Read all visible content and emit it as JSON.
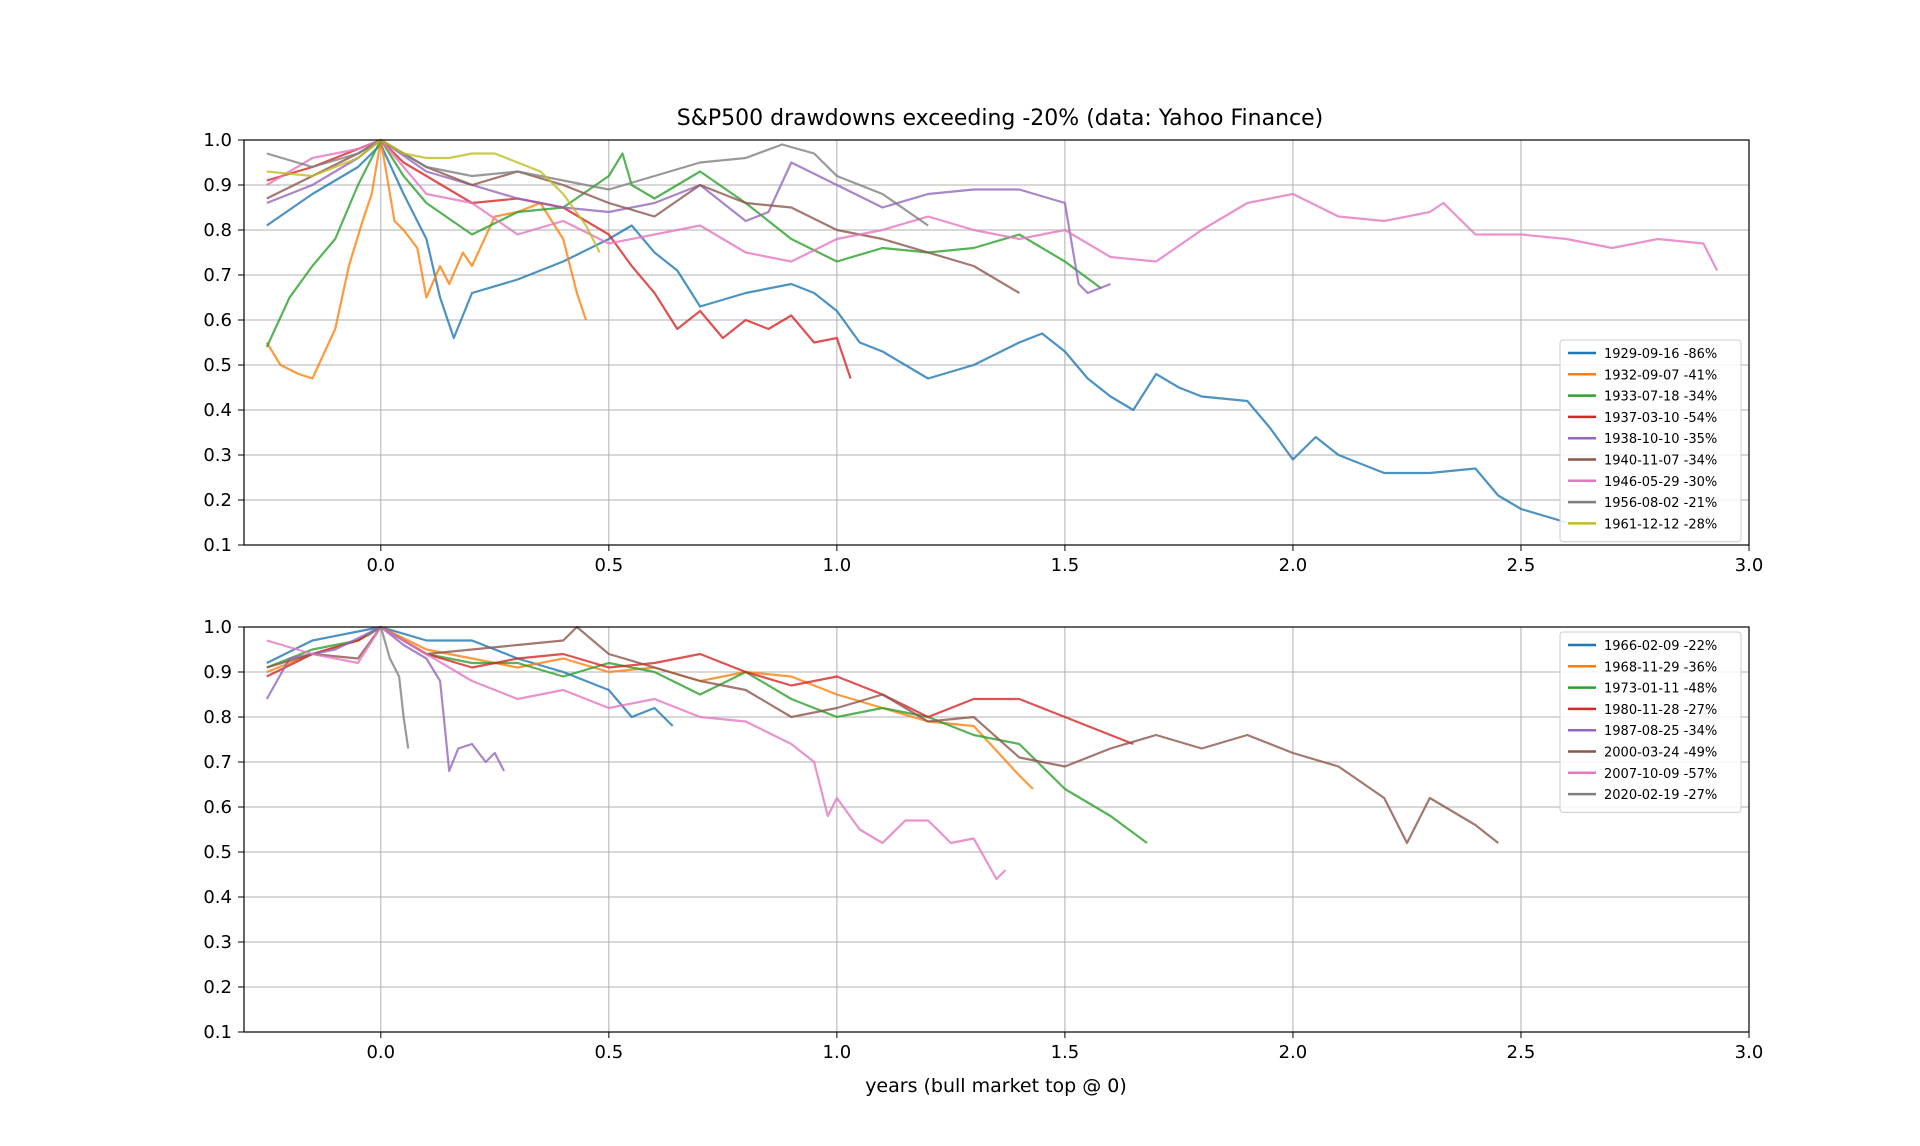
{
  "chart_data": [
    {
      "type": "line",
      "title": "S&P500 drawdowns exceeding -20% (data: Yahoo Finance)",
      "xlabel": "",
      "ylabel": "",
      "xlim": [
        -0.3,
        3.0
      ],
      "ylim": [
        0.1,
        1.0
      ],
      "xticks": [
        "0.0",
        "0.5",
        "1.0",
        "1.5",
        "2.0",
        "2.5",
        "3.0"
      ],
      "yticks": [
        "0.1",
        "0.2",
        "0.3",
        "0.4",
        "0.5",
        "0.6",
        "0.7",
        "0.8",
        "0.9",
        "1.0"
      ],
      "grid": true,
      "legend_position": "lower-right",
      "series": [
        {
          "name": "1929-09-16 -86%",
          "color": "#1f77b4",
          "x": [
            -0.25,
            -0.15,
            -0.05,
            0.0,
            0.05,
            0.1,
            0.13,
            0.16,
            0.2,
            0.3,
            0.4,
            0.5,
            0.55,
            0.6,
            0.65,
            0.7,
            0.8,
            0.9,
            0.95,
            1.0,
            1.05,
            1.1,
            1.2,
            1.3,
            1.4,
            1.45,
            1.5,
            1.55,
            1.6,
            1.65,
            1.7,
            1.75,
            1.8,
            1.9,
            1.95,
            2.0,
            2.05,
            2.1,
            2.2,
            2.3,
            2.4,
            2.45,
            2.5,
            2.6
          ],
          "y": [
            0.81,
            0.88,
            0.94,
            0.99,
            0.88,
            0.78,
            0.65,
            0.56,
            0.66,
            0.69,
            0.73,
            0.78,
            0.81,
            0.75,
            0.71,
            0.63,
            0.66,
            0.68,
            0.66,
            0.62,
            0.55,
            0.53,
            0.47,
            0.5,
            0.55,
            0.57,
            0.53,
            0.47,
            0.43,
            0.4,
            0.48,
            0.45,
            0.43,
            0.42,
            0.36,
            0.29,
            0.34,
            0.3,
            0.26,
            0.26,
            0.27,
            0.21,
            0.18,
            0.15
          ]
        },
        {
          "name": "1932-09-07 -41%",
          "color": "#ff7f0e",
          "x": [
            -0.25,
            -0.22,
            -0.18,
            -0.15,
            -0.1,
            -0.07,
            -0.04,
            -0.02,
            0.0,
            0.03,
            0.05,
            0.08,
            0.1,
            0.13,
            0.15,
            0.18,
            0.2,
            0.25,
            0.3,
            0.35,
            0.4,
            0.43,
            0.45
          ],
          "y": [
            0.55,
            0.5,
            0.48,
            0.47,
            0.58,
            0.72,
            0.82,
            0.88,
            1.0,
            0.82,
            0.8,
            0.76,
            0.65,
            0.72,
            0.68,
            0.75,
            0.72,
            0.83,
            0.84,
            0.86,
            0.78,
            0.66,
            0.6
          ]
        },
        {
          "name": "1933-07-18 -34%",
          "color": "#2ca02c",
          "x": [
            -0.25,
            -0.2,
            -0.15,
            -0.1,
            -0.05,
            0.0,
            0.05,
            0.1,
            0.2,
            0.3,
            0.4,
            0.5,
            0.53,
            0.55,
            0.6,
            0.7,
            0.8,
            0.9,
            1.0,
            1.1,
            1.2,
            1.3,
            1.4,
            1.5,
            1.58
          ],
          "y": [
            0.54,
            0.65,
            0.72,
            0.78,
            0.9,
            1.0,
            0.92,
            0.86,
            0.79,
            0.84,
            0.85,
            0.92,
            0.97,
            0.9,
            0.87,
            0.93,
            0.86,
            0.78,
            0.73,
            0.76,
            0.75,
            0.76,
            0.79,
            0.73,
            0.67
          ]
        },
        {
          "name": "1937-03-10 -54%",
          "color": "#d62728",
          "x": [
            -0.25,
            -0.15,
            -0.05,
            0.0,
            0.05,
            0.1,
            0.2,
            0.3,
            0.4,
            0.45,
            0.5,
            0.55,
            0.6,
            0.65,
            0.7,
            0.75,
            0.8,
            0.85,
            0.9,
            0.95,
            1.0,
            1.03
          ],
          "y": [
            0.91,
            0.94,
            0.98,
            1.0,
            0.95,
            0.92,
            0.86,
            0.87,
            0.85,
            0.82,
            0.79,
            0.72,
            0.66,
            0.58,
            0.62,
            0.56,
            0.6,
            0.58,
            0.61,
            0.55,
            0.56,
            0.47
          ]
        },
        {
          "name": "1938-10-10 -35%",
          "color": "#9467bd",
          "x": [
            -0.25,
            -0.15,
            -0.05,
            0.0,
            0.1,
            0.2,
            0.3,
            0.4,
            0.5,
            0.6,
            0.7,
            0.8,
            0.85,
            0.9,
            1.0,
            1.1,
            1.2,
            1.3,
            1.4,
            1.5,
            1.53,
            1.55,
            1.6
          ],
          "y": [
            0.86,
            0.9,
            0.96,
            1.0,
            0.93,
            0.9,
            0.87,
            0.85,
            0.84,
            0.86,
            0.9,
            0.82,
            0.84,
            0.95,
            0.9,
            0.85,
            0.88,
            0.89,
            0.89,
            0.86,
            0.68,
            0.66,
            0.68
          ]
        },
        {
          "name": "1940-11-07 -34%",
          "color": "#8c564b",
          "x": [
            -0.25,
            -0.15,
            -0.05,
            0.0,
            0.1,
            0.2,
            0.3,
            0.4,
            0.5,
            0.6,
            0.7,
            0.8,
            0.9,
            1.0,
            1.1,
            1.2,
            1.3,
            1.4
          ],
          "y": [
            0.87,
            0.92,
            0.97,
            1.0,
            0.94,
            0.9,
            0.93,
            0.9,
            0.86,
            0.83,
            0.9,
            0.86,
            0.85,
            0.8,
            0.78,
            0.75,
            0.72,
            0.66
          ]
        },
        {
          "name": "1946-05-29 -30%",
          "color": "#e377c2",
          "x": [
            -0.25,
            -0.15,
            -0.05,
            0.0,
            0.1,
            0.2,
            0.3,
            0.4,
            0.5,
            0.6,
            0.7,
            0.8,
            0.9,
            1.0,
            1.1,
            1.2,
            1.3,
            1.4,
            1.5,
            1.6,
            1.7,
            1.8,
            1.9,
            2.0,
            2.1,
            2.2,
            2.3,
            2.33,
            2.4,
            2.5,
            2.6,
            2.7,
            2.8,
            2.9,
            2.93
          ],
          "y": [
            0.9,
            0.96,
            0.98,
            1.0,
            0.88,
            0.86,
            0.79,
            0.82,
            0.77,
            0.79,
            0.81,
            0.75,
            0.73,
            0.78,
            0.8,
            0.83,
            0.8,
            0.78,
            0.8,
            0.74,
            0.73,
            0.8,
            0.86,
            0.88,
            0.83,
            0.82,
            0.84,
            0.86,
            0.79,
            0.79,
            0.78,
            0.76,
            0.78,
            0.77,
            0.71
          ]
        },
        {
          "name": "1956-08-02 -21%",
          "color": "#7f7f7f",
          "x": [
            -0.25,
            -0.15,
            -0.05,
            0.0,
            0.1,
            0.2,
            0.3,
            0.4,
            0.5,
            0.6,
            0.7,
            0.8,
            0.88,
            0.95,
            1.0,
            1.1,
            1.2
          ],
          "y": [
            0.97,
            0.94,
            0.97,
            1.0,
            0.94,
            0.92,
            0.93,
            0.91,
            0.89,
            0.92,
            0.95,
            0.96,
            0.99,
            0.97,
            0.92,
            0.88,
            0.81
          ]
        },
        {
          "name": "1961-12-12 -28%",
          "color": "#bcbd22",
          "x": [
            -0.25,
            -0.15,
            -0.05,
            0.0,
            0.05,
            0.1,
            0.15,
            0.2,
            0.25,
            0.3,
            0.35,
            0.4,
            0.45,
            0.48
          ],
          "y": [
            0.93,
            0.92,
            0.96,
            1.0,
            0.97,
            0.96,
            0.96,
            0.97,
            0.97,
            0.95,
            0.93,
            0.88,
            0.81,
            0.75
          ]
        }
      ]
    },
    {
      "type": "line",
      "title": "",
      "xlabel": "years (bull market top @ 0)",
      "ylabel": "",
      "xlim": [
        -0.3,
        3.0
      ],
      "ylim": [
        0.1,
        1.0
      ],
      "xticks": [
        "0.0",
        "0.5",
        "1.0",
        "1.5",
        "2.0",
        "2.5",
        "3.0"
      ],
      "yticks": [
        "0.1",
        "0.2",
        "0.3",
        "0.4",
        "0.5",
        "0.6",
        "0.7",
        "0.8",
        "0.9",
        "1.0"
      ],
      "grid": true,
      "legend_position": "upper-right",
      "series": [
        {
          "name": "1966-02-09 -22%",
          "color": "#1f77b4",
          "x": [
            -0.25,
            -0.15,
            -0.05,
            0.0,
            0.1,
            0.2,
            0.3,
            0.4,
            0.5,
            0.55,
            0.6,
            0.64
          ],
          "y": [
            0.92,
            0.97,
            0.99,
            1.0,
            0.97,
            0.97,
            0.93,
            0.9,
            0.86,
            0.8,
            0.82,
            0.78
          ]
        },
        {
          "name": "1968-11-29 -36%",
          "color": "#ff7f0e",
          "x": [
            -0.25,
            -0.15,
            -0.05,
            0.0,
            0.1,
            0.2,
            0.3,
            0.4,
            0.5,
            0.6,
            0.7,
            0.8,
            0.9,
            1.0,
            1.1,
            1.2,
            1.3,
            1.4,
            1.43
          ],
          "y": [
            0.9,
            0.94,
            0.97,
            1.0,
            0.95,
            0.93,
            0.91,
            0.93,
            0.9,
            0.91,
            0.88,
            0.9,
            0.89,
            0.85,
            0.82,
            0.79,
            0.78,
            0.67,
            0.64
          ]
        },
        {
          "name": "1973-01-11 -48%",
          "color": "#2ca02c",
          "x": [
            -0.25,
            -0.15,
            -0.05,
            0.0,
            0.1,
            0.2,
            0.3,
            0.4,
            0.5,
            0.6,
            0.7,
            0.8,
            0.9,
            1.0,
            1.1,
            1.2,
            1.3,
            1.4,
            1.5,
            1.6,
            1.68
          ],
          "y": [
            0.91,
            0.95,
            0.97,
            1.0,
            0.94,
            0.92,
            0.92,
            0.89,
            0.92,
            0.9,
            0.85,
            0.9,
            0.84,
            0.8,
            0.82,
            0.8,
            0.76,
            0.74,
            0.64,
            0.58,
            0.52
          ]
        },
        {
          "name": "1980-11-28 -27%",
          "color": "#d62728",
          "x": [
            -0.25,
            -0.15,
            -0.05,
            0.0,
            0.1,
            0.2,
            0.3,
            0.4,
            0.5,
            0.6,
            0.7,
            0.8,
            0.9,
            1.0,
            1.1,
            1.2,
            1.3,
            1.4,
            1.5,
            1.6,
            1.65
          ],
          "y": [
            0.89,
            0.94,
            0.97,
            1.0,
            0.94,
            0.91,
            0.93,
            0.94,
            0.91,
            0.92,
            0.94,
            0.9,
            0.87,
            0.89,
            0.85,
            0.8,
            0.84,
            0.84,
            0.8,
            0.76,
            0.74
          ]
        },
        {
          "name": "1987-08-25 -34%",
          "color": "#9467bd",
          "x": [
            -0.25,
            -0.2,
            -0.1,
            0.0,
            0.05,
            0.1,
            0.13,
            0.14,
            0.15,
            0.17,
            0.2,
            0.23,
            0.25,
            0.27
          ],
          "y": [
            0.84,
            0.93,
            0.95,
            1.0,
            0.96,
            0.93,
            0.88,
            0.78,
            0.68,
            0.73,
            0.74,
            0.7,
            0.72,
            0.68
          ]
        },
        {
          "name": "2000-03-24 -49%",
          "color": "#8c564b",
          "x": [
            -0.25,
            -0.15,
            -0.05,
            0.0,
            0.1,
            0.2,
            0.3,
            0.4,
            0.43,
            0.5,
            0.6,
            0.7,
            0.8,
            0.9,
            1.0,
            1.1,
            1.2,
            1.3,
            1.4,
            1.5,
            1.6,
            1.7,
            1.8,
            1.9,
            2.0,
            2.1,
            2.2,
            2.25,
            2.3,
            2.4,
            2.45
          ],
          "y": [
            0.91,
            0.94,
            0.93,
            1.0,
            0.94,
            0.95,
            0.96,
            0.97,
            1.0,
            0.94,
            0.91,
            0.88,
            0.86,
            0.8,
            0.82,
            0.85,
            0.79,
            0.8,
            0.71,
            0.69,
            0.73,
            0.76,
            0.73,
            0.76,
            0.72,
            0.69,
            0.62,
            0.52,
            0.62,
            0.56,
            0.52
          ]
        },
        {
          "name": "2007-10-09 -57%",
          "color": "#e377c2",
          "x": [
            -0.25,
            -0.15,
            -0.05,
            0.0,
            0.1,
            0.2,
            0.3,
            0.4,
            0.5,
            0.6,
            0.7,
            0.8,
            0.9,
            0.95,
            0.98,
            1.0,
            1.05,
            1.1,
            1.15,
            1.2,
            1.25,
            1.3,
            1.35,
            1.37
          ],
          "y": [
            0.97,
            0.94,
            0.92,
            1.0,
            0.94,
            0.88,
            0.84,
            0.86,
            0.82,
            0.84,
            0.8,
            0.79,
            0.74,
            0.7,
            0.58,
            0.62,
            0.55,
            0.52,
            0.57,
            0.57,
            0.52,
            0.53,
            0.44,
            0.46
          ]
        },
        {
          "name": "2020-02-19 -27%",
          "color": "#7f7f7f",
          "x": [
            -0.03,
            0.0,
            0.02,
            0.04,
            0.05,
            0.06
          ],
          "y": [
            0.98,
            1.0,
            0.93,
            0.89,
            0.8,
            0.73
          ]
        }
      ]
    }
  ]
}
